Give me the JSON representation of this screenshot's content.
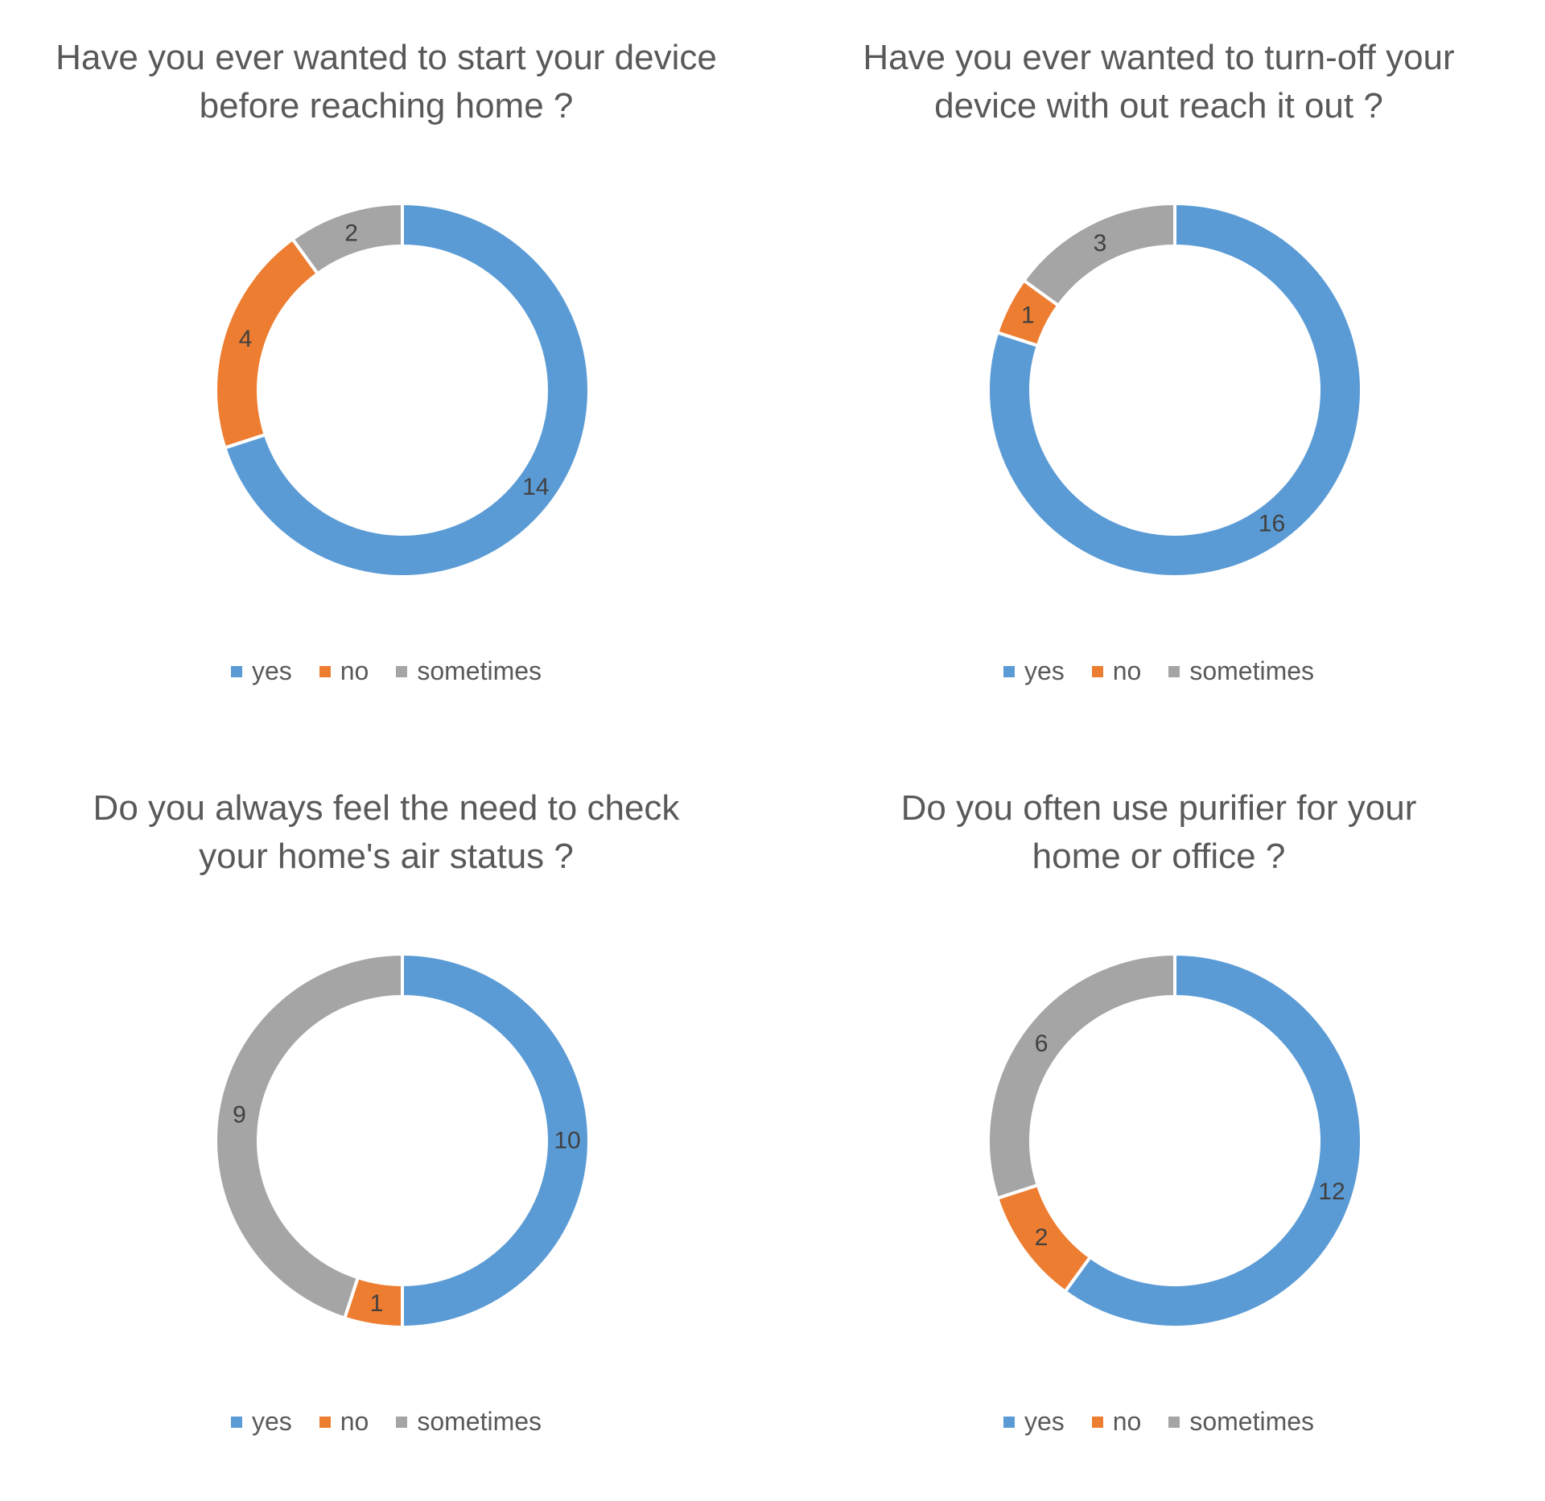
{
  "colors": {
    "yes": "#5B9BD5",
    "no": "#ED7D31",
    "sometimes": "#A5A5A5"
  },
  "chart_data": [
    {
      "type": "pie",
      "donut": true,
      "title_lines": [
        "Have you ever wanted to start your device",
        "before reaching home ?"
      ],
      "categories": [
        "yes",
        "no",
        "sometimes"
      ],
      "values": [
        14,
        4,
        2
      ],
      "legend_position": "bottom"
    },
    {
      "type": "pie",
      "donut": true,
      "title_lines": [
        "Have you ever wanted to turn-off your",
        "device with out reach it out ?"
      ],
      "categories": [
        "yes",
        "no",
        "sometimes"
      ],
      "values": [
        16,
        1,
        3
      ],
      "legend_position": "bottom"
    },
    {
      "type": "pie",
      "donut": true,
      "title_lines": [
        "Do you always feel the need to check",
        "your home's air status ?"
      ],
      "categories": [
        "yes",
        "no",
        "sometimes"
      ],
      "values": [
        10,
        1,
        9
      ],
      "legend_position": "bottom"
    },
    {
      "type": "pie",
      "donut": true,
      "title_lines": [
        "Do you often use purifier for your",
        "home or office ?"
      ],
      "categories": [
        "yes",
        "no",
        "sometimes"
      ],
      "values": [
        12,
        2,
        6
      ],
      "legend_position": "bottom"
    }
  ]
}
